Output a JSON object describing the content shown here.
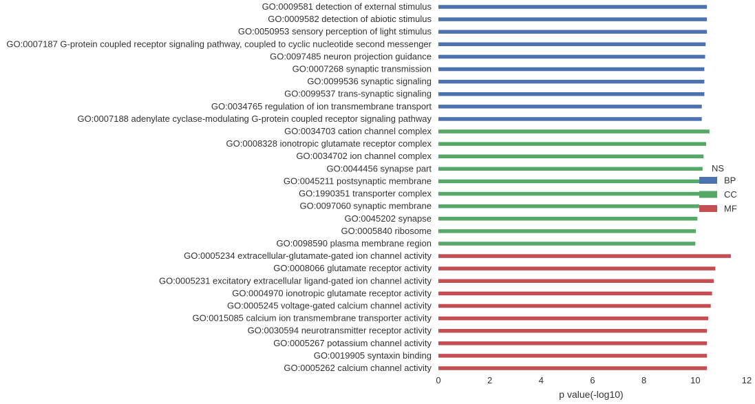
{
  "chart_data": {
    "type": "bar",
    "orientation": "horizontal",
    "title": "",
    "xlabel": "p value(-log10)",
    "ylabel": "",
    "xlim": [
      0,
      12
    ],
    "xticks": [
      "0",
      "2",
      "4",
      "6",
      "8",
      "10",
      "12"
    ],
    "grid": false,
    "legend": {
      "title": "NS",
      "placement": "right",
      "entries": [
        {
          "name": "BP",
          "color": "#4c72b0"
        },
        {
          "name": "CC",
          "color": "#55a868"
        },
        {
          "name": "MF",
          "color": "#c44e52"
        }
      ]
    },
    "categories": [
      {
        "label": "GO:0009581 detection of external stimulus",
        "value": 10.45,
        "group": "BP"
      },
      {
        "label": "GO:0009582 detection of abiotic stimulus",
        "value": 10.45,
        "group": "BP"
      },
      {
        "label": "GO:0050953 sensory perception of light stimulus",
        "value": 10.45,
        "group": "BP"
      },
      {
        "label": "GO:0007187 G-protein coupled receptor signaling pathway, coupled to cyclic nucleotide second messenger",
        "value": 10.4,
        "group": "BP"
      },
      {
        "label": "GO:0097485 neuron projection guidance",
        "value": 10.38,
        "group": "BP"
      },
      {
        "label": "GO:0007268 synaptic transmission",
        "value": 10.35,
        "group": "BP"
      },
      {
        "label": "GO:0099536 synaptic signaling",
        "value": 10.35,
        "group": "BP"
      },
      {
        "label": "GO:0099537 trans-synaptic signaling",
        "value": 10.35,
        "group": "BP"
      },
      {
        "label": "GO:0034765 regulation of ion transmembrane transport",
        "value": 10.25,
        "group": "BP"
      },
      {
        "label": "GO:0007188 adenylate cyclase-modulating G-protein coupled receptor signaling pathway",
        "value": 10.25,
        "group": "BP"
      },
      {
        "label": "GO:0034703 cation channel complex",
        "value": 10.55,
        "group": "CC"
      },
      {
        "label": "GO:0008328 ionotropic glutamate receptor complex",
        "value": 10.42,
        "group": "CC"
      },
      {
        "label": "GO:0034702 ion channel complex",
        "value": 10.32,
        "group": "CC"
      },
      {
        "label": "GO:0044456 synapse part",
        "value": 10.28,
        "group": "CC"
      },
      {
        "label": "GO:0045211 postsynaptic membrane",
        "value": 10.25,
        "group": "CC"
      },
      {
        "label": "GO:1990351 transporter complex",
        "value": 10.2,
        "group": "CC"
      },
      {
        "label": "GO:0097060 synaptic membrane",
        "value": 10.15,
        "group": "CC"
      },
      {
        "label": "GO:0045202 synapse",
        "value": 10.08,
        "group": "CC"
      },
      {
        "label": "GO:0005840 ribosome",
        "value": 10.02,
        "group": "CC"
      },
      {
        "label": "GO:0098590 plasma membrane region",
        "value": 10.0,
        "group": "CC"
      },
      {
        "label": "GO:0005234 extracellular-glutamate-gated ion channel activity",
        "value": 11.38,
        "group": "MF"
      },
      {
        "label": "GO:0008066 glutamate receptor activity",
        "value": 10.78,
        "group": "MF"
      },
      {
        "label": "GO:0005231 excitatory extracellular ligand-gated ion channel activity",
        "value": 10.72,
        "group": "MF"
      },
      {
        "label": "GO:0004970 ionotropic glutamate receptor activity",
        "value": 10.65,
        "group": "MF"
      },
      {
        "label": "GO:0005245 voltage-gated calcium channel activity",
        "value": 10.6,
        "group": "MF"
      },
      {
        "label": "GO:0015085 calcium ion transmembrane transporter activity",
        "value": 10.5,
        "group": "MF"
      },
      {
        "label": "GO:0030594 neurotransmitter receptor activity",
        "value": 10.45,
        "group": "MF"
      },
      {
        "label": "GO:0005267 potassium channel activity",
        "value": 10.45,
        "group": "MF"
      },
      {
        "label": "GO:0019905 syntaxin binding",
        "value": 10.45,
        "group": "MF"
      },
      {
        "label": "GO:0005262 calcium channel activity",
        "value": 10.45,
        "group": "MF"
      }
    ]
  }
}
